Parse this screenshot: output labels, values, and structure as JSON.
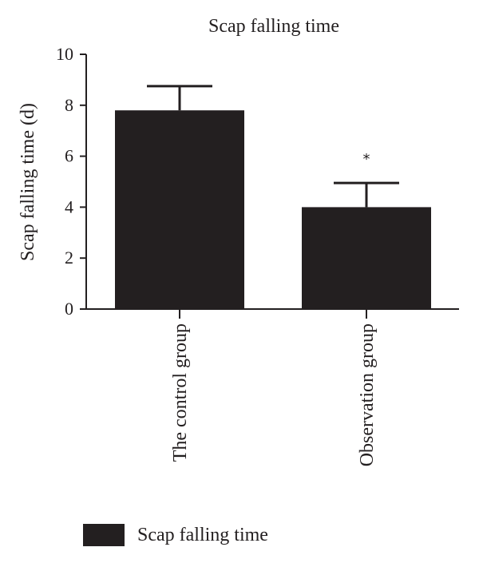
{
  "chart_data": {
    "type": "bar",
    "title": "Scap falling time",
    "ylabel": "Scap falling time (d)",
    "xlabel": "",
    "ylim": [
      0,
      10
    ],
    "yticks": [
      0,
      2,
      4,
      6,
      8,
      10
    ],
    "categories": [
      "The control group",
      "Observation group"
    ],
    "series": [
      {
        "name": "Scap falling time",
        "values": [
          7.8,
          4.0
        ],
        "error": [
          0.95,
          0.95
        ],
        "annotations": [
          "",
          "*"
        ]
      }
    ],
    "grid": false,
    "legend": "bottom-left",
    "colors": {
      "bar": "#231f20",
      "axis": "#231f20",
      "text": "#231f20"
    }
  }
}
